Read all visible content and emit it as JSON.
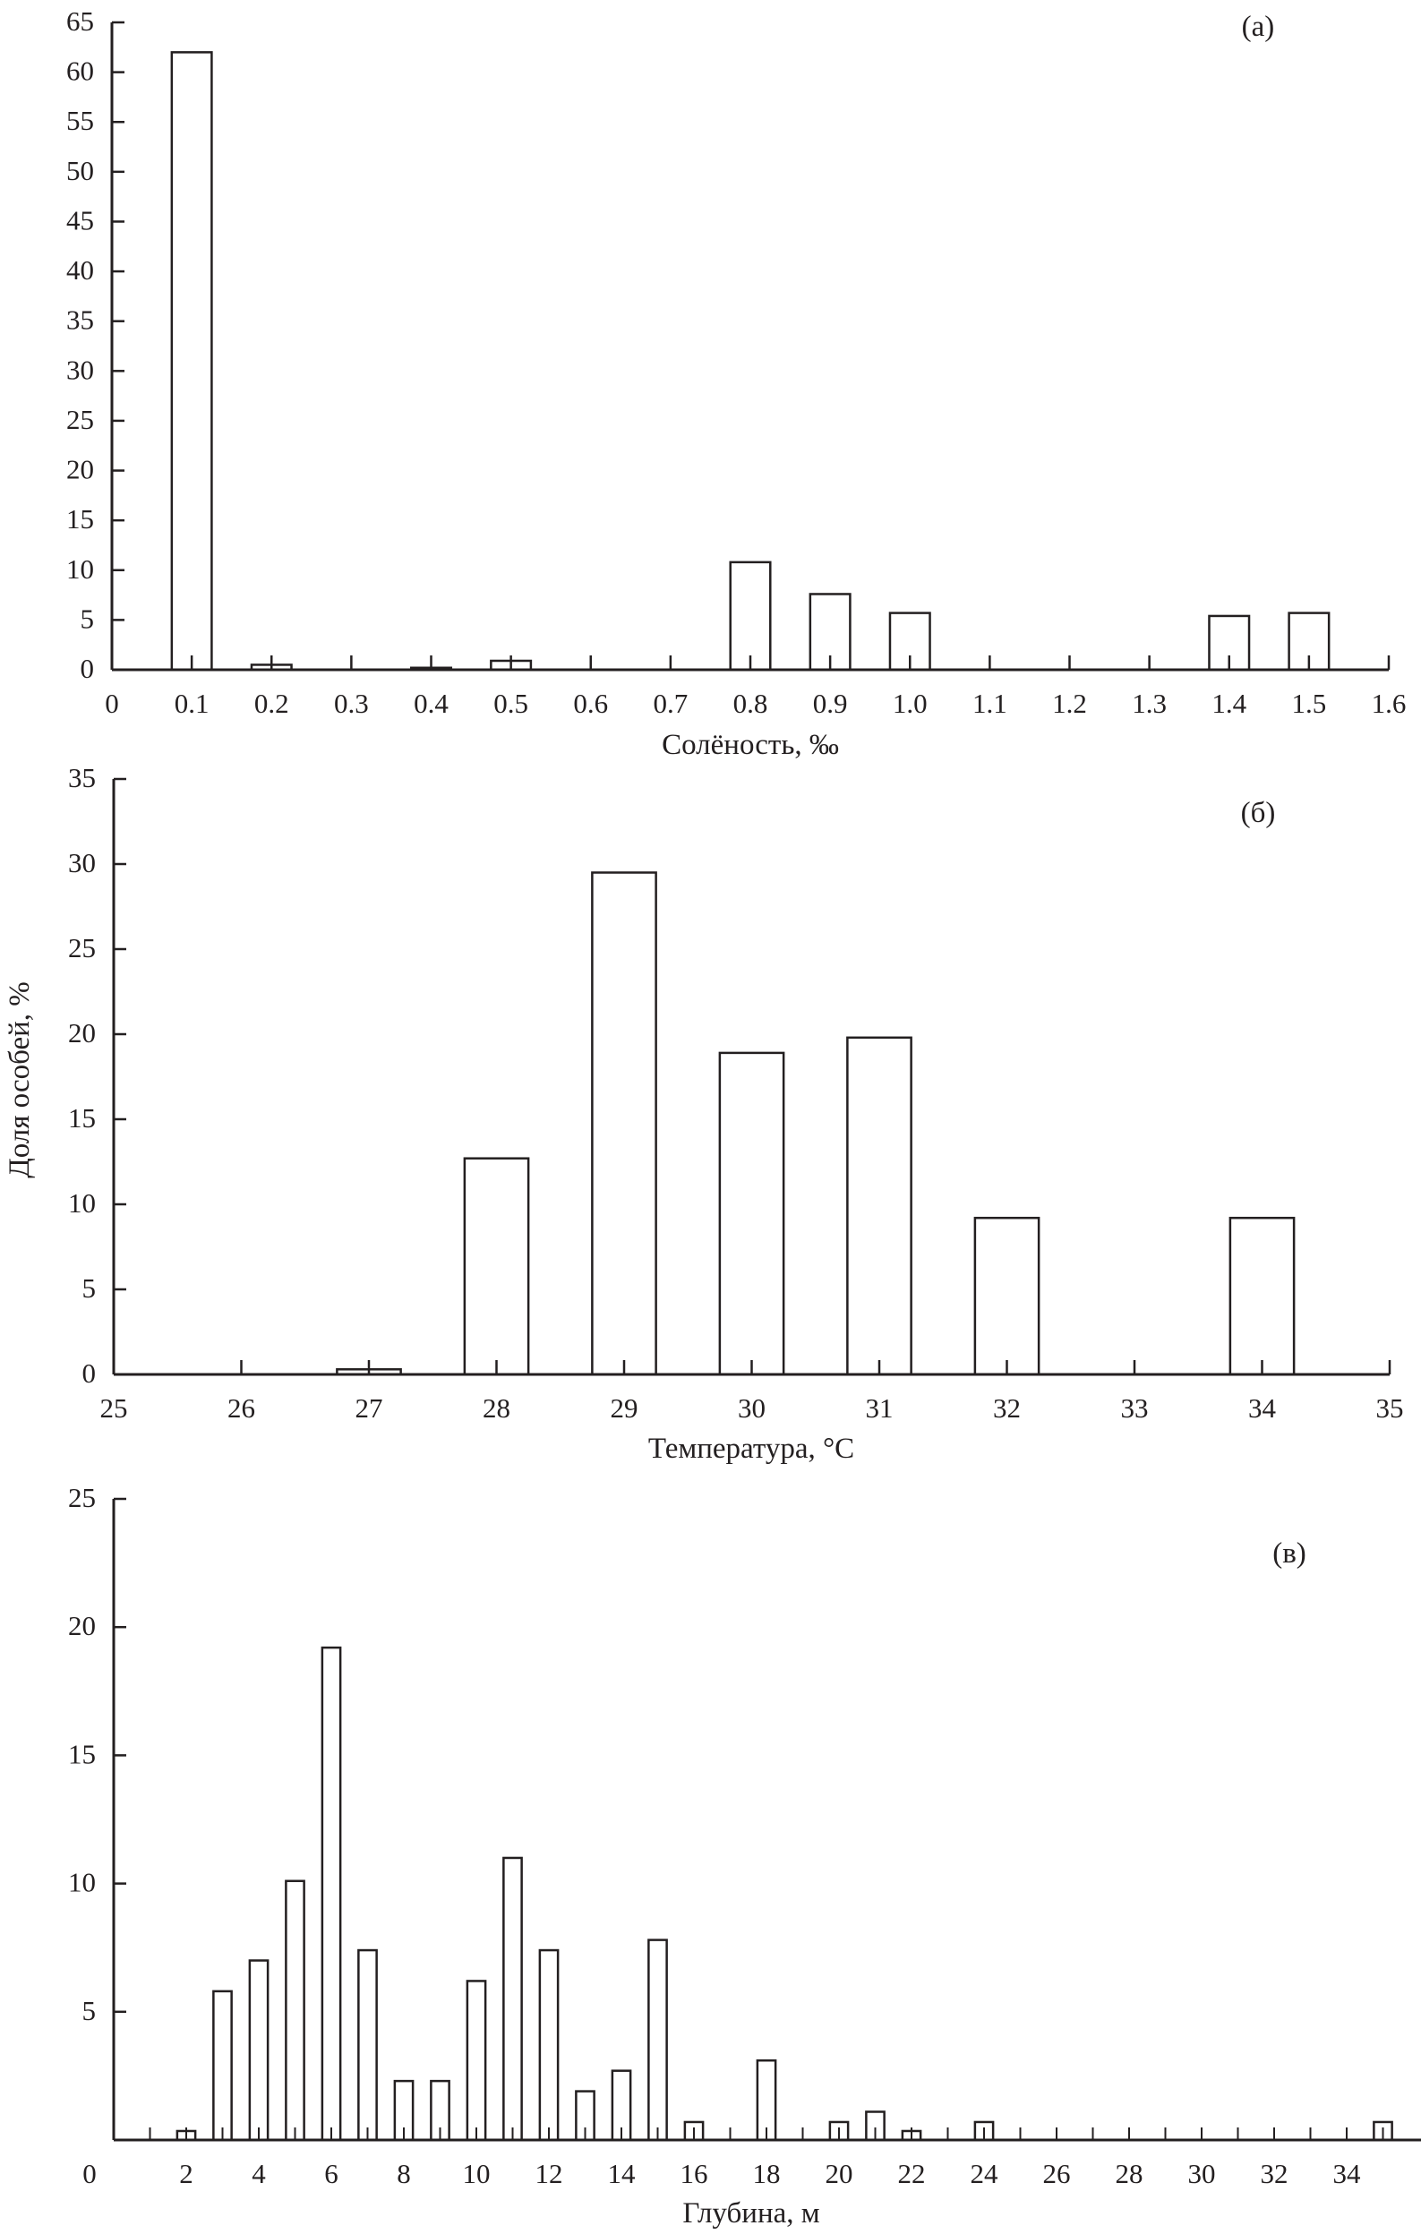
{
  "ylabel": "Доля особей, %",
  "chart_data": [
    {
      "type": "bar",
      "panel_label": "(а)",
      "xlabel": "Солёность, ‰",
      "ylabel": "Доля особей, %",
      "xlim": [
        0,
        1.6
      ],
      "ylim": [
        0,
        65
      ],
      "xticks": [
        "0",
        "0.1",
        "0.2",
        "0.3",
        "0.4",
        "0.5",
        "0.6",
        "0.7",
        "0.8",
        "0.9",
        "1.0",
        "1.1",
        "1.2",
        "1.3",
        "1.4",
        "1.5",
        "1.6"
      ],
      "yticks": [
        "0",
        "5",
        "10",
        "15",
        "20",
        "25",
        "30",
        "35",
        "40",
        "45",
        "50",
        "55",
        "60",
        "65"
      ],
      "x": [
        0.1,
        0.2,
        0.4,
        0.5,
        0.8,
        0.9,
        1.0,
        1.4,
        1.5
      ],
      "values": [
        62,
        0.5,
        0.2,
        0.9,
        10.8,
        7.6,
        5.7,
        5.4,
        5.7
      ]
    },
    {
      "type": "bar",
      "panel_label": "(б)",
      "xlabel": "Температура, °C",
      "ylabel": "Доля особей, %",
      "xlim": [
        25,
        35
      ],
      "ylim": [
        0,
        35
      ],
      "xticks": [
        "25",
        "26",
        "27",
        "28",
        "29",
        "30",
        "31",
        "32",
        "33",
        "34",
        "35"
      ],
      "yticks": [
        "0",
        "5",
        "10",
        "15",
        "20",
        "25",
        "30",
        "35"
      ],
      "x": [
        27,
        28,
        29,
        30,
        31,
        32,
        34
      ],
      "values": [
        0.3,
        12.7,
        29.5,
        18.9,
        19.8,
        9.2,
        9.2
      ]
    },
    {
      "type": "bar",
      "panel_label": "(в)",
      "xlabel": "Глубина, м",
      "ylabel": "Доля особей, %",
      "xlim": [
        0,
        36
      ],
      "ylim": [
        0,
        25
      ],
      "xticks": [
        "0",
        "2",
        "4",
        "6",
        "8",
        "10",
        "12",
        "14",
        "16",
        "18",
        "20",
        "22",
        "24",
        "26",
        "28",
        "30",
        "32",
        "34"
      ],
      "yticks": [
        "5",
        "10",
        "15",
        "20",
        "25"
      ],
      "x": [
        2,
        3,
        4,
        5,
        6,
        7,
        8,
        9,
        10,
        11,
        12,
        13,
        14,
        15,
        16,
        18,
        20,
        21,
        22,
        24,
        35
      ],
      "values": [
        0.35,
        5.8,
        7.0,
        10.1,
        19.2,
        7.4,
        2.3,
        2.3,
        6.2,
        11.0,
        7.4,
        1.9,
        2.7,
        7.8,
        0.7,
        3.1,
        0.7,
        1.1,
        0.35,
        0.7,
        0.7
      ]
    }
  ]
}
